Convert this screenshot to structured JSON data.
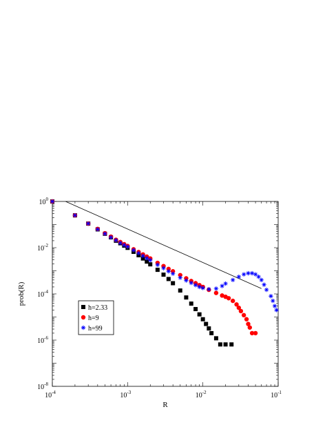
{
  "chart_data": {
    "type": "scatter",
    "title": "",
    "xlabel": "R",
    "ylabel": "prob(R)",
    "xscale": "log",
    "yscale": "log",
    "xlim": [
      0.0001,
      0.1
    ],
    "ylim": [
      1e-08,
      1
    ],
    "grid": false,
    "legend_position": "bottom-left",
    "x_ticks": [
      {
        "base": "10",
        "exp": "-4"
      },
      {
        "base": "10",
        "exp": "-3"
      },
      {
        "base": "10",
        "exp": "-2"
      },
      {
        "base": "10",
        "exp": "-1"
      }
    ],
    "y_ticks": [
      {
        "base": "10",
        "exp": "0"
      },
      {
        "base": "10",
        "exp": "-2"
      },
      {
        "base": "10",
        "exp": "-4"
      },
      {
        "base": "10",
        "exp": "-6"
      },
      {
        "base": "10",
        "exp": "-8"
      }
    ],
    "reference_line": {
      "x": [
        0.00015,
        0.06
      ],
      "y": [
        1.0,
        0.00017
      ]
    },
    "series": [
      {
        "name": "h=2.33",
        "marker": "square",
        "color": "#000000",
        "points": [
          [
            0.0001,
            1.0
          ],
          [
            0.0002,
            0.25
          ],
          [
            0.0003,
            0.11
          ],
          [
            0.0004,
            0.062
          ],
          [
            0.0005,
            0.04
          ],
          [
            0.0006,
            0.028
          ],
          [
            0.0007,
            0.02
          ],
          [
            0.0008,
            0.0155
          ],
          [
            0.0009,
            0.0122
          ],
          [
            0.001,
            0.0098
          ],
          [
            0.0012,
            0.0066
          ],
          [
            0.0014,
            0.0047
          ],
          [
            0.0016,
            0.0034
          ],
          [
            0.0018,
            0.0025
          ],
          [
            0.002,
            0.0019
          ],
          [
            0.0025,
            0.0011
          ],
          [
            0.003,
            0.00068
          ],
          [
            0.0035,
            0.00044
          ],
          [
            0.004,
            0.00029
          ],
          [
            0.005,
            0.00014
          ],
          [
            0.006,
            7e-05
          ],
          [
            0.007,
            3.8e-05
          ],
          [
            0.008,
            2.2e-05
          ],
          [
            0.009,
            1.3e-05
          ],
          [
            0.01,
            8e-06
          ],
          [
            0.011,
            5e-06
          ],
          [
            0.012,
            3.2e-06
          ],
          [
            0.013,
            2e-06
          ],
          [
            0.015,
            1.2e-06
          ],
          [
            0.017,
            6.5e-07
          ],
          [
            0.02,
            6.5e-07
          ],
          [
            0.024,
            6.5e-07
          ]
        ]
      },
      {
        "name": "h=9",
        "marker": "circle",
        "color": "#ff0000",
        "points": [
          [
            0.0001,
            1.0
          ],
          [
            0.0002,
            0.25
          ],
          [
            0.0003,
            0.11
          ],
          [
            0.0004,
            0.065
          ],
          [
            0.0005,
            0.042
          ],
          [
            0.0006,
            0.03
          ],
          [
            0.0007,
            0.022
          ],
          [
            0.0008,
            0.0175
          ],
          [
            0.0009,
            0.0142
          ],
          [
            0.001,
            0.0118
          ],
          [
            0.0012,
            0.0085
          ],
          [
            0.0014,
            0.0065
          ],
          [
            0.0016,
            0.0051
          ],
          [
            0.0018,
            0.0041
          ],
          [
            0.002,
            0.0034
          ],
          [
            0.0025,
            0.0022
          ],
          [
            0.003,
            0.0016
          ],
          [
            0.0035,
            0.0012
          ],
          [
            0.004,
            0.00095
          ],
          [
            0.005,
            0.00065
          ],
          [
            0.006,
            0.00047
          ],
          [
            0.007,
            0.00036
          ],
          [
            0.008,
            0.00029
          ],
          [
            0.009,
            0.00024
          ],
          [
            0.01,
            0.0002
          ],
          [
            0.012,
            0.00015
          ],
          [
            0.015,
            0.00011
          ],
          [
            0.018,
            8.5e-05
          ],
          [
            0.02,
            7.5e-05
          ],
          [
            0.022,
            6.5e-05
          ],
          [
            0.025,
            5e-05
          ],
          [
            0.028,
            3.5e-05
          ],
          [
            0.03,
            2.5e-05
          ],
          [
            0.032,
            1.8e-05
          ],
          [
            0.035,
            1.2e-05
          ],
          [
            0.038,
            8e-06
          ],
          [
            0.04,
            5e-06
          ],
          [
            0.042,
            3.5e-06
          ],
          [
            0.045,
            2e-06
          ],
          [
            0.05,
            2e-06
          ]
        ]
      },
      {
        "name": "h=99",
        "marker": "star",
        "color": "#0000ff",
        "points": [
          [
            0.0001,
            1.0
          ],
          [
            0.0002,
            0.25
          ],
          [
            0.0003,
            0.11
          ],
          [
            0.0004,
            0.062
          ],
          [
            0.0005,
            0.04
          ],
          [
            0.0006,
            0.028
          ],
          [
            0.0007,
            0.021
          ],
          [
            0.0008,
            0.016
          ],
          [
            0.0009,
            0.013
          ],
          [
            0.001,
            0.011
          ],
          [
            0.0012,
            0.0078
          ],
          [
            0.0014,
            0.0058
          ],
          [
            0.0016,
            0.0044
          ],
          [
            0.0018,
            0.0035
          ],
          [
            0.002,
            0.0029
          ],
          [
            0.0025,
            0.0018
          ],
          [
            0.003,
            0.0013
          ],
          [
            0.0035,
            0.00095
          ],
          [
            0.004,
            0.00075
          ],
          [
            0.005,
            0.0005
          ],
          [
            0.006,
            0.00038
          ],
          [
            0.007,
            0.0003
          ],
          [
            0.008,
            0.00024
          ],
          [
            0.009,
            0.0002
          ],
          [
            0.01,
            0.00018
          ],
          [
            0.012,
            0.00016
          ],
          [
            0.015,
            0.00017
          ],
          [
            0.018,
            0.00022
          ],
          [
            0.02,
            0.00028
          ],
          [
            0.025,
            0.0004
          ],
          [
            0.03,
            0.00055
          ],
          [
            0.035,
            0.0007
          ],
          [
            0.04,
            0.00078
          ],
          [
            0.045,
            0.00078
          ],
          [
            0.05,
            0.0007
          ],
          [
            0.055,
            0.00055
          ],
          [
            0.06,
            0.0004
          ],
          [
            0.065,
            0.00025
          ],
          [
            0.07,
            0.00015
          ],
          [
            0.08,
            8e-05
          ],
          [
            0.085,
            5e-05
          ],
          [
            0.09,
            3e-05
          ],
          [
            0.095,
            2e-05
          ]
        ]
      }
    ]
  }
}
